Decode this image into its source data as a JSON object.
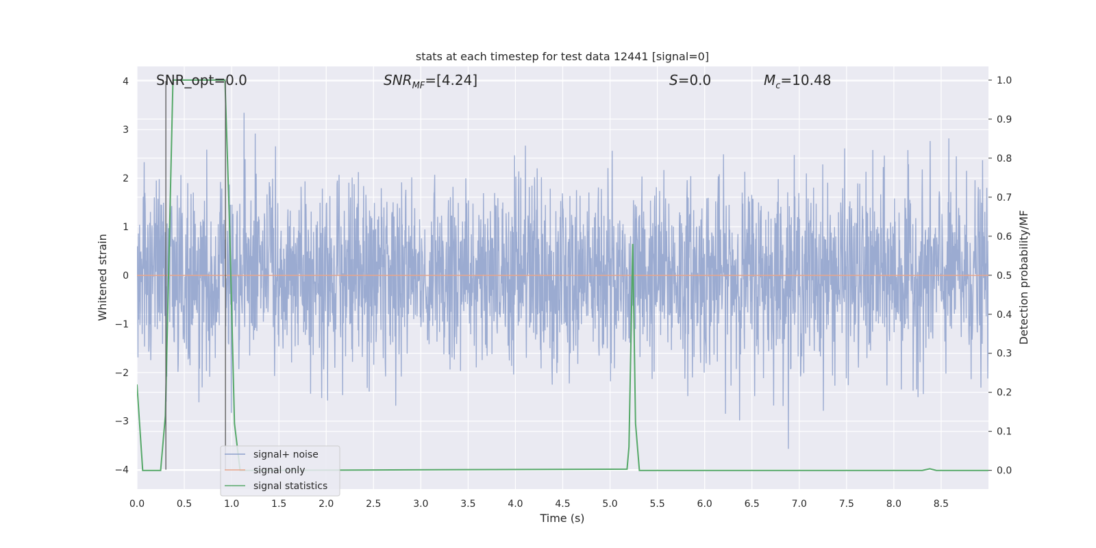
{
  "chart_data": {
    "type": "line",
    "title": "stats at each timestep for test data 12441 [signal=0]",
    "xlabel": "Time (s)",
    "ylabel": "Whitened strain",
    "y2label": "Detection probability/MF",
    "xlim": [
      0.0,
      9.0
    ],
    "ylim": [
      -4.4,
      4.3
    ],
    "y2lim": [
      -0.048,
      1.035
    ],
    "x_ticks": [
      "0.0",
      "0.5",
      "1.0",
      "1.5",
      "2.0",
      "2.5",
      "3.0",
      "3.5",
      "4.0",
      "4.5",
      "5.0",
      "5.5",
      "6.0",
      "6.5",
      "7.0",
      "7.5",
      "8.0",
      "8.5"
    ],
    "y_ticks": [
      "4",
      "3",
      "2",
      "1",
      "0",
      "−1",
      "−2",
      "−3",
      "−4"
    ],
    "y2_ticks": [
      "1.0",
      "0.9",
      "0.8",
      "0.7",
      "0.6",
      "0.5",
      "0.4",
      "0.3",
      "0.2",
      "0.1",
      "0.0"
    ],
    "grid": true,
    "legend_position": "lower-left",
    "annotations": {
      "snr_opt": "SNR_opt=0.0",
      "snr_mf_main": "SNR",
      "snr_mf_sub": "MF",
      "snr_mf_value": "=[4.24]",
      "s_symbol": "S",
      "s_value": "=0.0",
      "mc_main": "M",
      "mc_sub": "c",
      "mc_value": "=10.48"
    },
    "vertical_lines_x": [
      0.305,
      0.935
    ],
    "series": [
      {
        "name": "signal+ noise",
        "color": "#8da0cb",
        "axis": "left",
        "kind": "noise",
        "description_values": {
          "typical_envelope": [
            -1.6,
            1.6
          ],
          "max_peak": 4.0,
          "min_peak": -4.0
        }
      },
      {
        "name": "signal only",
        "color": "#e8a58a",
        "axis": "left",
        "x": [
          0.0,
          9.0
        ],
        "y": [
          0.0,
          0.0
        ]
      },
      {
        "name": "signal statistics",
        "color": "#55a868",
        "axis": "right",
        "x": [
          0.0,
          0.06,
          0.25,
          0.3,
          0.38,
          0.93,
          0.98,
          1.03,
          1.09,
          5.18,
          5.2,
          5.24,
          5.27,
          5.31,
          8.3,
          8.38,
          8.45,
          9.0
        ],
        "y": [
          0.22,
          0.0,
          0.0,
          0.14,
          1.0,
          1.0,
          0.62,
          0.12,
          0.0,
          0.003,
          0.06,
          0.58,
          0.12,
          0.0,
          0.0,
          0.004,
          0.0,
          0.0
        ]
      }
    ]
  }
}
